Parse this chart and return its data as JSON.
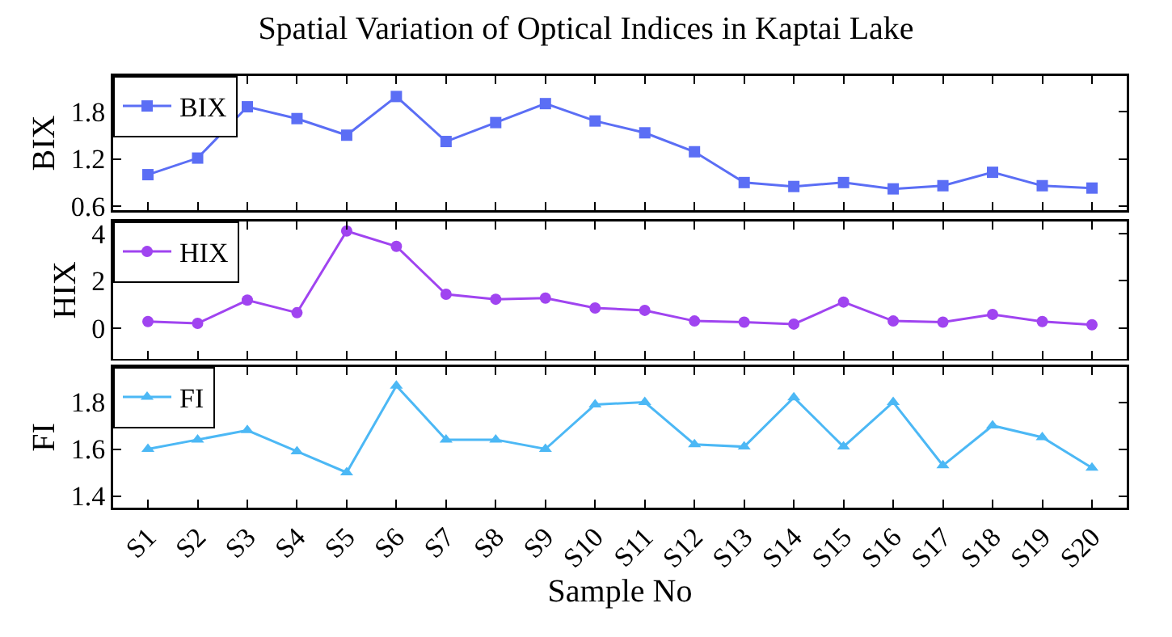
{
  "chart_data": [
    {
      "type": "line",
      "title": "Spatial Variation of Optical Indices in Kaptai Lake",
      "ylabel": "BIX",
      "categories": [
        null,
        null,
        null,
        null,
        null,
        null,
        null,
        null,
        null,
        null,
        null,
        null,
        null,
        null,
        null,
        null,
        null,
        null,
        null,
        null
      ],
      "series": [
        {
          "name": "BIX",
          "color": "#5b6ef5",
          "values": [
            1.0,
            1.21,
            1.86,
            1.71,
            1.5,
            1.99,
            1.42,
            1.66,
            1.9,
            1.68,
            1.53,
            1.29,
            0.9,
            0.85,
            0.9,
            0.82,
            0.86,
            1.03,
            0.86,
            0.83
          ]
        }
      ],
      "ylim": [
        0.55,
        2.25
      ],
      "yticks": [
        0.6,
        1.2,
        1.8
      ],
      "marker": "square",
      "legend": "top left",
      "grid": false,
      "tick_labels": "y"
    },
    {
      "type": "line",
      "ylabel": "HIX",
      "categories": [
        null,
        null,
        null,
        null,
        null,
        null,
        null,
        null,
        null,
        null,
        null,
        null,
        null,
        null,
        null,
        null,
        null,
        null,
        null,
        null
      ],
      "series": [
        {
          "name": "HIX",
          "color": "#a044f0",
          "values": [
            0.28,
            0.2,
            1.18,
            0.65,
            4.1,
            3.45,
            1.43,
            1.22,
            1.27,
            0.85,
            0.75,
            0.3,
            0.25,
            0.17,
            1.1,
            0.3,
            0.25,
            0.58,
            0.28,
            0.14
          ]
        }
      ],
      "ylim": [
        -1.3,
        4.5
      ],
      "yticks": [
        0,
        2,
        4
      ],
      "marker": "circle",
      "legend": "top left",
      "grid": false,
      "tick_labels": "y"
    },
    {
      "type": "line",
      "ylabel": "FI",
      "xlabel": "Sample No",
      "categories": [
        "S1",
        "S2",
        "S3",
        "S4",
        "S5",
        "S6",
        "S7",
        "S8",
        "S9",
        "S10",
        "S11",
        "S12",
        "S13",
        "S14",
        "S15",
        "S16",
        "S17",
        "S18",
        "S19",
        "S20"
      ],
      "series": [
        {
          "name": "FI",
          "color": "#4cb8f5",
          "values": [
            1.6,
            1.64,
            1.68,
            1.59,
            1.5,
            1.87,
            1.64,
            1.64,
            1.6,
            1.79,
            1.8,
            1.62,
            1.61,
            1.82,
            1.61,
            1.8,
            1.53,
            1.7,
            1.65,
            1.52
          ]
        }
      ],
      "ylim": [
        1.35,
        1.95
      ],
      "yticks": [
        1.4,
        1.6,
        1.8
      ],
      "marker": "triangle",
      "legend": "top left",
      "grid": false
    }
  ]
}
